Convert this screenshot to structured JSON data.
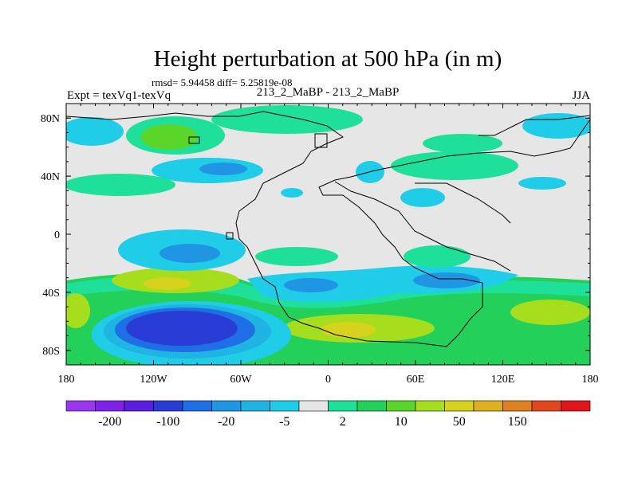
{
  "chart_data": {
    "type": "heatmap",
    "title": "Height perturbation at 500 hPa (in m)",
    "stats_text": "rmsd= 5.94458 diff= 5.25819e-08",
    "left_label": "Expt = texVq1-texVq",
    "center_label": "213_2_MaBP - 213_2_MaBP",
    "right_label": "JJA",
    "x_ticks": [
      {
        "value": -180,
        "label": "180"
      },
      {
        "value": -120,
        "label": "120W"
      },
      {
        "value": -60,
        "label": "60W"
      },
      {
        "value": 0,
        "label": "0"
      },
      {
        "value": 60,
        "label": "60E"
      },
      {
        "value": 120,
        "label": "120E"
      },
      {
        "value": 180,
        "label": "180"
      }
    ],
    "y_ticks": [
      {
        "value": 80,
        "label": "80N"
      },
      {
        "value": 40,
        "label": "40N"
      },
      {
        "value": 0,
        "label": "0"
      },
      {
        "value": -40,
        "label": "40S"
      },
      {
        "value": -80,
        "label": "80S"
      }
    ],
    "xlim": [
      -180,
      180
    ],
    "ylim": [
      -90,
      90
    ],
    "colorbar": {
      "colors": [
        "#9a36ee",
        "#7f22e8",
        "#5a1ee0",
        "#2a3cd6",
        "#1e6ee6",
        "#1f95e4",
        "#1fb4e2",
        "#20cde8",
        "#e6e6e6",
        "#1ee09a",
        "#22d05a",
        "#5ad62a",
        "#a6de1e",
        "#d6d21e",
        "#dcb01e",
        "#e0801e",
        "#e2461e",
        "#e2141e"
      ],
      "labels": [
        "-200",
        "-100",
        "-20",
        "-5",
        "2",
        "10",
        "50",
        "150"
      ]
    }
  }
}
